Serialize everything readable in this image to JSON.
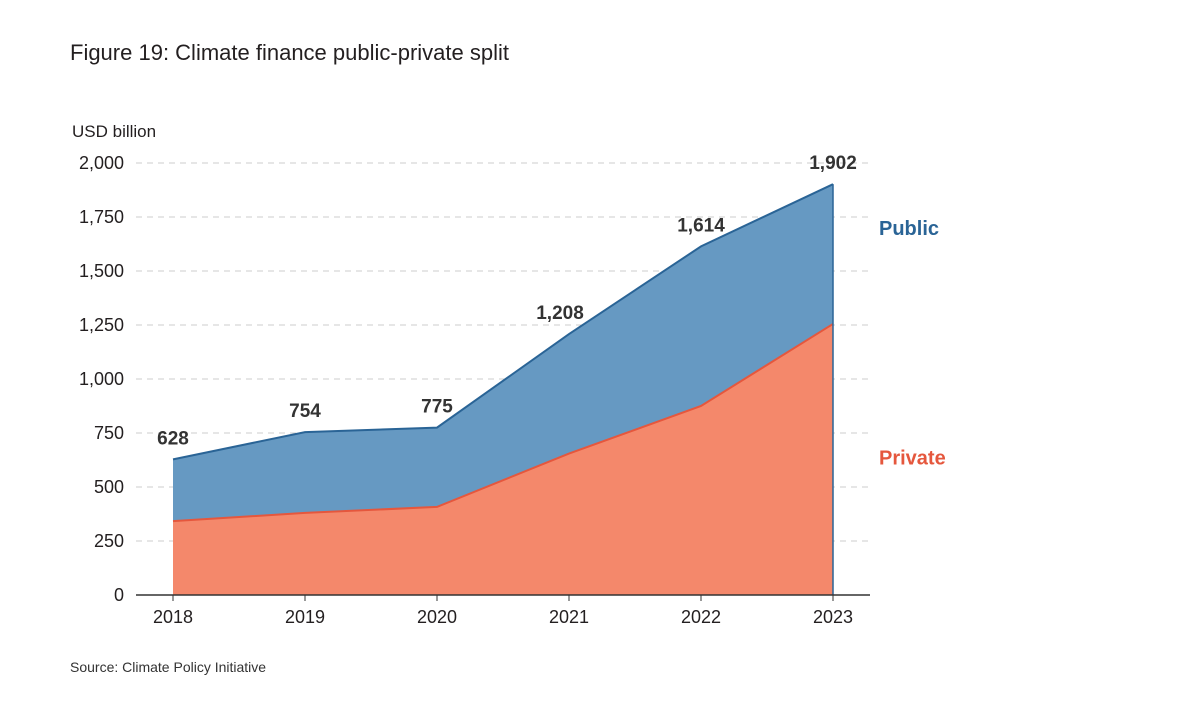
{
  "title": "Figure 19: Climate finance public-private split",
  "source": "Source: Climate Policy Initiative",
  "colors": {
    "public_fill": "#6699c2",
    "public_line": "#2a6496",
    "private_fill": "#f4886b",
    "private_line": "#e5573d",
    "public_label": "#2a6496",
    "private_label": "#e5573d",
    "grid": "#cccccc",
    "axis": "#333333"
  },
  "chart_data": {
    "type": "area",
    "stacked": true,
    "title": "Figure 19: Climate finance public-private split",
    "ylabel": "USD billion",
    "xlabel": "",
    "x": [
      "2018",
      "2019",
      "2020",
      "2021",
      "2022",
      "2023"
    ],
    "ylim": [
      0,
      2000
    ],
    "yticks": [
      0,
      250,
      500,
      750,
      1000,
      1250,
      1500,
      1750,
      2000
    ],
    "ytick_labels": [
      "0",
      "250",
      "500",
      "750",
      "1,000",
      "1,250",
      "1,500",
      "1,750",
      "2,000"
    ],
    "grid": "horizontal dashed",
    "series": [
      {
        "name": "Private",
        "values": [
          342,
          380,
          408,
          655,
          875,
          1255
        ]
      },
      {
        "name": "Public",
        "values": [
          286,
          374,
          367,
          553,
          739,
          647
        ]
      }
    ],
    "totals": [
      628,
      754,
      775,
      1208,
      1614,
      1902
    ],
    "total_labels": [
      "628",
      "754",
      "775",
      "1,208",
      "1,614",
      "1,902"
    ],
    "legend": [
      {
        "name": "Public",
        "placement": "right, upper band"
      },
      {
        "name": "Private",
        "placement": "right, lower band"
      }
    ]
  }
}
